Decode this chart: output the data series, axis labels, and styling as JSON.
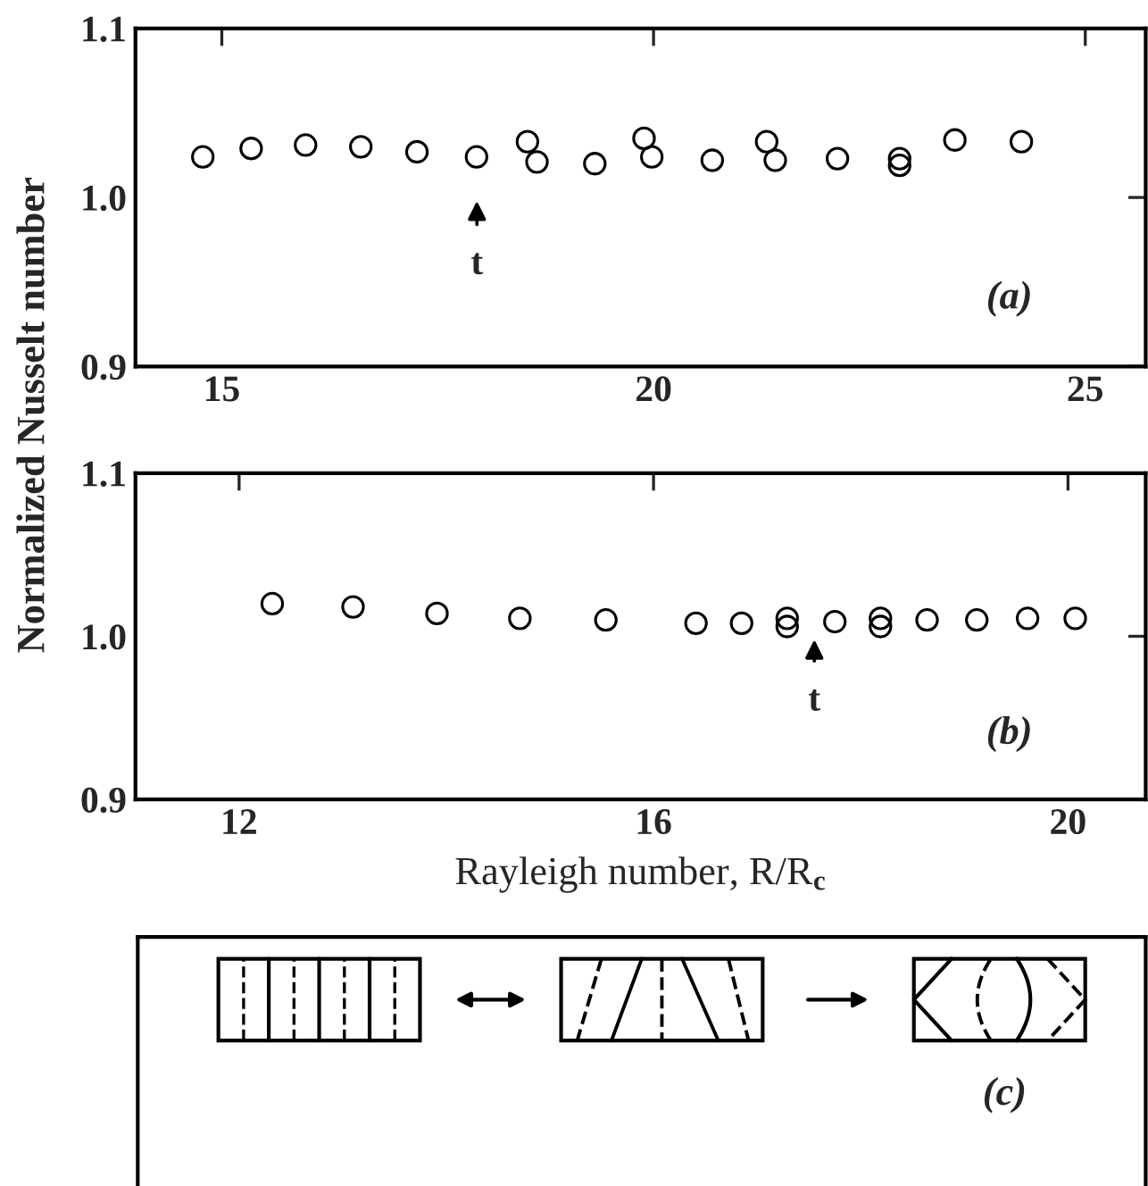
{
  "chart_data": [
    {
      "type": "scatter",
      "ylabel": "Normalized Nusselt number",
      "marker": "circle",
      "grid": false,
      "legend": false,
      "xlim": [
        14,
        25.7
      ],
      "xticks": [
        15,
        20,
        25
      ],
      "ylim": [
        0.9,
        1.1
      ],
      "yticks": [
        {
          "value": 0.9,
          "label": "0.9"
        },
        {
          "value": 1.0,
          "label": "1.0"
        },
        {
          "value": 1.1,
          "label": "1.1"
        }
      ],
      "series": [
        {
          "color": "#000000",
          "x": [
            14.78,
            15.34,
            15.97,
            16.61,
            17.26,
            17.95,
            18.54,
            18.65,
            19.32,
            19.89,
            19.98,
            20.68,
            21.31,
            21.41,
            22.13,
            22.85,
            22.85,
            23.49,
            24.26
          ],
          "values": [
            1.024,
            1.029,
            1.031,
            1.03,
            1.027,
            1.024,
            1.033,
            1.021,
            1.02,
            1.035,
            1.024,
            1.022,
            1.033,
            1.022,
            1.023,
            1.023,
            1.019,
            1.034,
            1.033
          ]
        }
      ],
      "annotations": [
        "t",
        "(a)"
      ]
    },
    {
      "type": "scatter",
      "xlabel": "Rayleigh number, R/R$_{c}$",
      "marker": "circle",
      "grid": false,
      "legend": false,
      "xlim": [
        11,
        20.75
      ],
      "xticks": [
        12,
        16,
        20
      ],
      "ylim": [
        0.9,
        1.1
      ],
      "yticks": [
        {
          "value": 0.9,
          "label": "0.9"
        },
        {
          "value": 1.0,
          "label": "1.0"
        },
        {
          "value": 1.1,
          "label": "1.1"
        }
      ],
      "series": [
        {
          "color": "#000000",
          "x": [
            12.32,
            13.1,
            13.91,
            14.71,
            15.54,
            16.41,
            16.85,
            17.29,
            17.29,
            17.75,
            18.19,
            18.19,
            18.64,
            19.12,
            19.61,
            20.07
          ],
          "values": [
            1.02,
            1.018,
            1.014,
            1.011,
            1.01,
            1.008,
            1.008,
            1.011,
            1.006,
            1.009,
            1.011,
            1.006,
            1.01,
            1.01,
            1.011,
            1.011
          ]
        }
      ],
      "annotations": [
        "t",
        "(b)"
      ]
    },
    {
      "type": "other",
      "annotations": [
        "(c)"
      ]
    }
  ]
}
